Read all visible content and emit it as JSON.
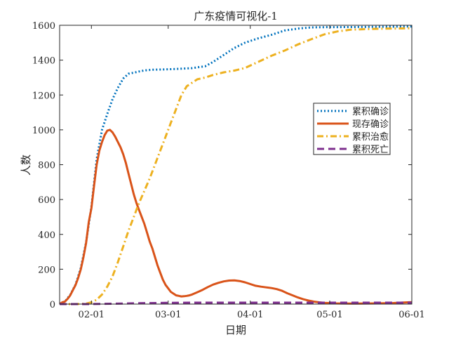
{
  "chart_data": {
    "type": "line",
    "title": "广东疫情可视化-1",
    "xlabel": "日期",
    "ylabel": "人数",
    "x_ticks": [
      "02-01",
      "03-01",
      "04-01",
      "05-01",
      "06-01"
    ],
    "x_tick_values": [
      12,
      41,
      72,
      102,
      133
    ],
    "y_ticks": [
      "0",
      "200",
      "400",
      "600",
      "800",
      "1000",
      "1200",
      "1400",
      "1600"
    ],
    "xlim": [
      0,
      133
    ],
    "ylim": [
      0,
      1600
    ],
    "grid": false,
    "legend_position": "right",
    "x_unit_note": "days from 2020-01-20",
    "series": [
      {
        "name": "累积确诊",
        "style": "dotted",
        "color": "#0072BD",
        "points": [
          [
            0,
            1
          ],
          [
            2,
            14
          ],
          [
            4,
            53
          ],
          [
            6,
            111
          ],
          [
            8,
            207
          ],
          [
            10,
            354
          ],
          [
            12,
            559
          ],
          [
            14,
            832
          ],
          [
            16,
            1000
          ],
          [
            18,
            1091
          ],
          [
            20,
            1177
          ],
          [
            22,
            1241
          ],
          [
            24,
            1294
          ],
          [
            26,
            1322
          ],
          [
            28,
            1328
          ],
          [
            30,
            1335
          ],
          [
            32,
            1341
          ],
          [
            35,
            1345
          ],
          [
            40,
            1347
          ],
          [
            45,
            1350
          ],
          [
            50,
            1354
          ],
          [
            55,
            1365
          ],
          [
            58,
            1390
          ],
          [
            62,
            1430
          ],
          [
            66,
            1470
          ],
          [
            70,
            1500
          ],
          [
            75,
            1525
          ],
          [
            80,
            1545
          ],
          [
            85,
            1570
          ],
          [
            90,
            1581
          ],
          [
            95,
            1588
          ],
          [
            100,
            1589
          ],
          [
            110,
            1590
          ],
          [
            120,
            1591
          ],
          [
            133,
            1593
          ]
        ]
      },
      {
        "name": "现存确诊",
        "style": "solid",
        "color": "#D95319",
        "points": [
          [
            0,
            1
          ],
          [
            1,
            10
          ],
          [
            2,
            14
          ],
          [
            3,
            30
          ],
          [
            4,
            50
          ],
          [
            5,
            80
          ],
          [
            6,
            109
          ],
          [
            7,
            150
          ],
          [
            8,
            200
          ],
          [
            9,
            270
          ],
          [
            10,
            350
          ],
          [
            11,
            470
          ],
          [
            12,
            550
          ],
          [
            13,
            680
          ],
          [
            14,
            800
          ],
          [
            15,
            880
          ],
          [
            16,
            930
          ],
          [
            17,
            970
          ],
          [
            18,
            995
          ],
          [
            19,
            1000
          ],
          [
            20,
            985
          ],
          [
            21,
            960
          ],
          [
            22,
            930
          ],
          [
            23,
            900
          ],
          [
            24,
            860
          ],
          [
            25,
            810
          ],
          [
            26,
            750
          ],
          [
            27,
            690
          ],
          [
            28,
            630
          ],
          [
            29,
            580
          ],
          [
            30,
            540
          ],
          [
            31,
            500
          ],
          [
            32,
            460
          ],
          [
            33,
            410
          ],
          [
            34,
            360
          ],
          [
            35,
            320
          ],
          [
            36,
            270
          ],
          [
            37,
            220
          ],
          [
            38,
            180
          ],
          [
            39,
            140
          ],
          [
            40,
            110
          ],
          [
            41,
            90
          ],
          [
            42,
            70
          ],
          [
            43,
            60
          ],
          [
            44,
            50
          ],
          [
            45,
            47
          ],
          [
            46,
            44
          ],
          [
            47,
            45
          ],
          [
            48,
            47
          ],
          [
            49,
            50
          ],
          [
            50,
            55
          ],
          [
            52,
            68
          ],
          [
            54,
            82
          ],
          [
            56,
            98
          ],
          [
            58,
            112
          ],
          [
            60,
            122
          ],
          [
            62,
            130
          ],
          [
            64,
            135
          ],
          [
            66,
            136
          ],
          [
            68,
            132
          ],
          [
            70,
            125
          ],
          [
            72,
            115
          ],
          [
            74,
            105
          ],
          [
            76,
            100
          ],
          [
            78,
            96
          ],
          [
            80,
            92
          ],
          [
            82,
            86
          ],
          [
            84,
            76
          ],
          [
            86,
            62
          ],
          [
            88,
            50
          ],
          [
            90,
            38
          ],
          [
            92,
            28
          ],
          [
            94,
            20
          ],
          [
            96,
            14
          ],
          [
            98,
            10
          ],
          [
            100,
            7
          ],
          [
            104,
            4
          ],
          [
            110,
            3
          ],
          [
            120,
            4
          ],
          [
            126,
            6
          ],
          [
            130,
            9
          ],
          [
            133,
            11
          ]
        ]
      },
      {
        "name": "累积治愈",
        "style": "dashdot",
        "color": "#EDB120",
        "points": [
          [
            0,
            0
          ],
          [
            5,
            0
          ],
          [
            8,
            1
          ],
          [
            10,
            3
          ],
          [
            12,
            10
          ],
          [
            14,
            25
          ],
          [
            16,
            55
          ],
          [
            18,
            100
          ],
          [
            20,
            160
          ],
          [
            22,
            240
          ],
          [
            24,
            330
          ],
          [
            26,
            420
          ],
          [
            28,
            500
          ],
          [
            30,
            580
          ],
          [
            32,
            650
          ],
          [
            34,
            720
          ],
          [
            36,
            800
          ],
          [
            38,
            880
          ],
          [
            40,
            960
          ],
          [
            42,
            1040
          ],
          [
            44,
            1120
          ],
          [
            46,
            1200
          ],
          [
            48,
            1250
          ],
          [
            50,
            1270
          ],
          [
            52,
            1290
          ],
          [
            55,
            1300
          ],
          [
            58,
            1315
          ],
          [
            62,
            1330
          ],
          [
            66,
            1340
          ],
          [
            70,
            1355
          ],
          [
            75,
            1390
          ],
          [
            80,
            1425
          ],
          [
            85,
            1455
          ],
          [
            90,
            1490
          ],
          [
            95,
            1520
          ],
          [
            100,
            1548
          ],
          [
            105,
            1565
          ],
          [
            110,
            1575
          ],
          [
            120,
            1580
          ],
          [
            133,
            1583
          ]
        ]
      },
      {
        "name": "累积死亡",
        "style": "dashed",
        "color": "#7E2F8E",
        "points": [
          [
            0,
            0
          ],
          [
            10,
            0
          ],
          [
            20,
            2
          ],
          [
            30,
            5
          ],
          [
            40,
            7
          ],
          [
            50,
            8
          ],
          [
            60,
            8
          ],
          [
            70,
            8
          ],
          [
            80,
            8
          ],
          [
            90,
            8
          ],
          [
            100,
            8
          ],
          [
            110,
            8
          ],
          [
            120,
            8
          ],
          [
            133,
            8
          ]
        ]
      }
    ]
  }
}
